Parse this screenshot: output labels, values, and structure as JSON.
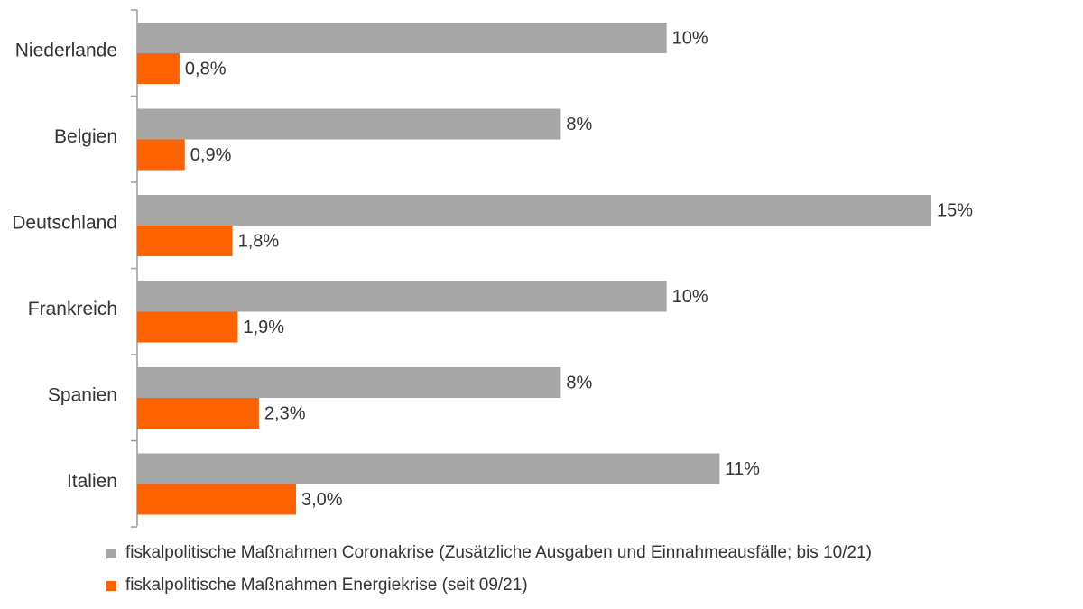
{
  "chart_data": {
    "type": "bar",
    "orientation": "horizontal",
    "categories": [
      "Niederlande",
      "Belgien",
      "Deutschland",
      "Frankreich",
      "Spanien",
      "Italien"
    ],
    "series": [
      {
        "name": "fiskalpolitische Maßnahmen Coronakrise (Zusätzliche Ausgaben und Einnahmeausfälle; bis 10/21)",
        "color": "#a6a6a6",
        "values": [
          10.0,
          8.0,
          15.0,
          10.0,
          8.0,
          11.0
        ],
        "labels": [
          "10%",
          "8%",
          "15%",
          "10%",
          "8%",
          "11%"
        ]
      },
      {
        "name": "fiskalpolitische Maßnahmen Energiekrise (seit 09/21)",
        "color": "#ff6200",
        "values": [
          0.8,
          0.9,
          1.8,
          1.9,
          2.3,
          3.0
        ],
        "labels": [
          "0,8%",
          "0,9%",
          "1,8%",
          "1,9%",
          "2,3%",
          "3,0%"
        ]
      }
    ],
    "title": "",
    "xlabel": "",
    "ylabel": "",
    "xlim": [
      0,
      16
    ],
    "grid": false,
    "legend_position": "bottom-left"
  }
}
